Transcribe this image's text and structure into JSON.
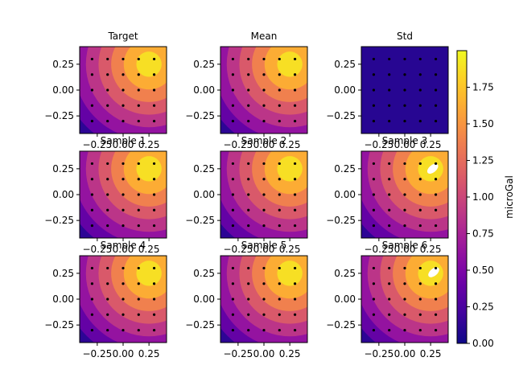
{
  "chart_data": {
    "type": "heatmap",
    "colormap": "plasma",
    "colorbar": {
      "label": "microGal",
      "range": [
        0.0,
        2.0
      ],
      "ticks": [
        0.0,
        0.25,
        0.5,
        0.75,
        1.0,
        1.25,
        1.5,
        1.75
      ],
      "tick_labels": [
        "0.00",
        "0.25",
        "0.50",
        "0.75",
        "1.00",
        "1.25",
        "1.50",
        "1.75"
      ]
    },
    "xlim": [
      -0.42,
      0.42
    ],
    "ylim": [
      -0.42,
      0.42
    ],
    "x_ticks": [
      -0.25,
      0.0,
      0.25
    ],
    "x_tick_labels": [
      "−0.25",
      "0.00",
      "0.25"
    ],
    "y_ticks": [
      -0.25,
      0.0,
      0.25
    ],
    "y_tick_labels": [
      "−0.25",
      "0.00",
      "0.25"
    ],
    "contour_levels": [
      0.0,
      0.25,
      0.5,
      0.75,
      1.0,
      1.25,
      1.5,
      1.75,
      2.0
    ],
    "field_peak": [
      0.25,
      0.25
    ],
    "observation_points": [
      -0.3,
      -0.15,
      0.0,
      0.15,
      0.3
    ],
    "panels": [
      {
        "title": "Target",
        "kind": "field"
      },
      {
        "title": "Mean",
        "kind": "field"
      },
      {
        "title": "Std",
        "kind": "std",
        "value": 0.1
      },
      {
        "title": "Sample 1",
        "kind": "field"
      },
      {
        "title": "Sample 2",
        "kind": "field"
      },
      {
        "title": "Sample 3",
        "kind": "field",
        "hole": [
          0.27,
          0.25
        ]
      },
      {
        "title": "Sample 4",
        "kind": "field"
      },
      {
        "title": "Sample 5",
        "kind": "field"
      },
      {
        "title": "Sample 6",
        "kind": "field",
        "hole": [
          0.28,
          0.26
        ]
      }
    ]
  }
}
